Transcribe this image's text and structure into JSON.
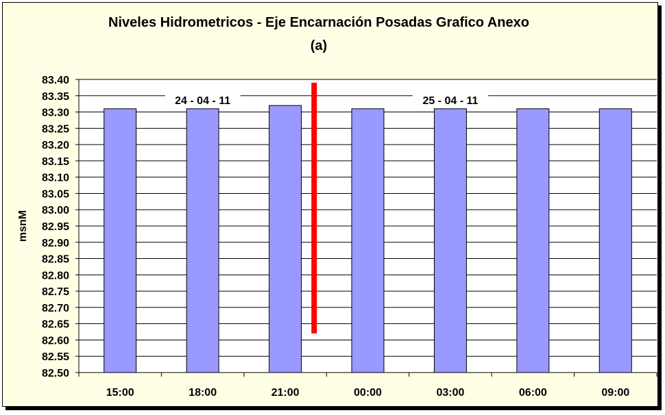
{
  "chart_data": {
    "type": "bar",
    "title": "Niveles Hidrometricos - Eje Encarnación Posadas Grafico Anexo",
    "subtitle": "(a)",
    "ylabel": "msnM",
    "xlabel": "",
    "categories": [
      "15:00",
      "18:00",
      "21:00",
      "00:00",
      "03:00",
      "06:00",
      "09:00"
    ],
    "values": [
      83.31,
      83.31,
      83.32,
      83.31,
      83.31,
      83.31,
      83.31
    ],
    "ylim": [
      82.5,
      83.4
    ],
    "yticks": [
      "82.50",
      "82.55",
      "82.60",
      "82.65",
      "82.70",
      "82.75",
      "82.80",
      "82.85",
      "82.90",
      "82.95",
      "83.00",
      "83.05",
      "83.10",
      "83.15",
      "83.20",
      "83.25",
      "83.30",
      "83.35",
      "83.40"
    ],
    "grid": true,
    "bar_color": "#9999ff",
    "annotations": [
      {
        "text": "24 - 04 - 11",
        "category": "18:00",
        "value": 83.32
      },
      {
        "text": "25 - 04 - 11",
        "category": "03:00",
        "value": 83.32
      }
    ],
    "day_separator": {
      "after_category": "21:00",
      "color": "#ff0000",
      "from": 82.62,
      "to": 83.39
    }
  }
}
